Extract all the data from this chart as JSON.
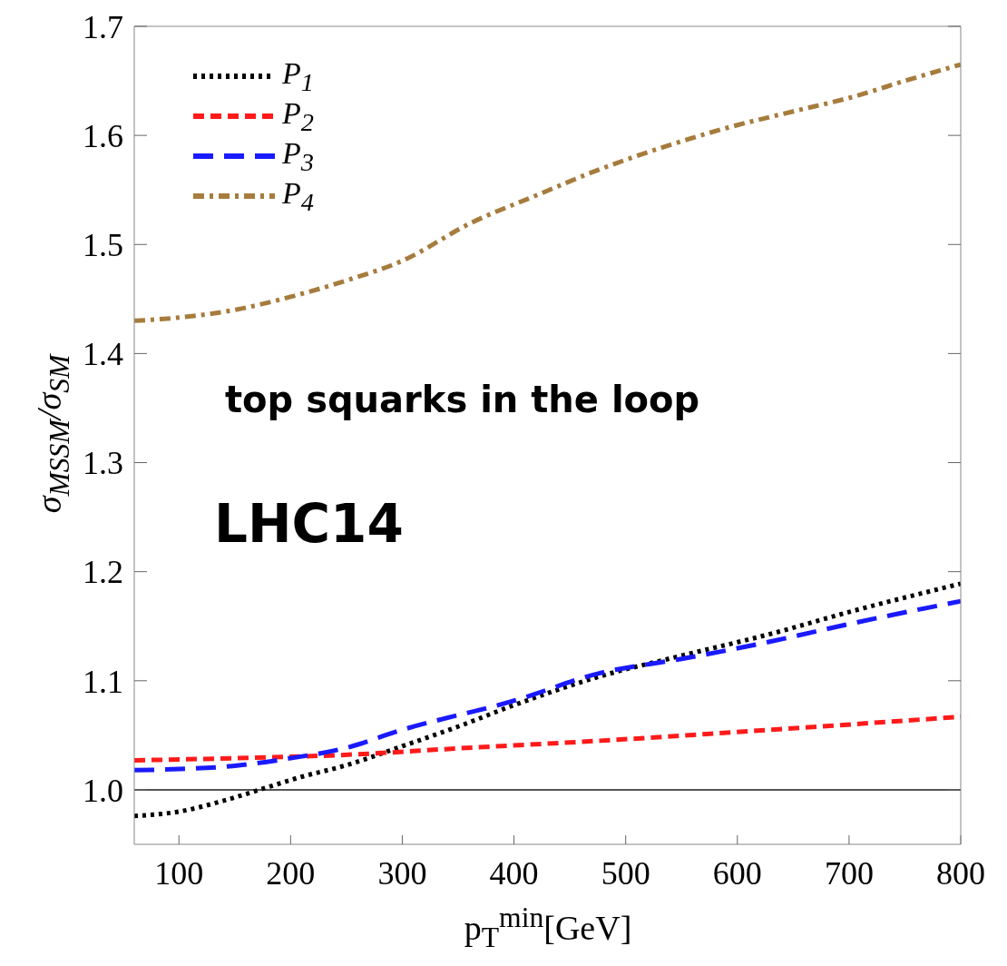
{
  "chart_data": {
    "type": "line",
    "xlabel": "p$_{T}$$^{min}$[GeV]",
    "ylabel": "σ$_{MSSM}$/σ$_{SM}$",
    "xlim": [
      60,
      800
    ],
    "xticks": [
      100,
      200,
      300,
      400,
      500,
      600,
      700,
      800
    ],
    "ylim": [
      0.95,
      1.7
    ],
    "yticks": [
      {
        "value": 1,
        "label": "1.0"
      },
      1.1,
      1.2,
      1.3,
      1.4,
      1.5,
      1.6,
      1.7
    ],
    "legend": "top left",
    "marker": "none",
    "ref_lines": [
      {
        "axis": "y",
        "value": 1.0,
        "color": "#555555",
        "line_style": "solid"
      }
    ],
    "annotations": [
      "top squarks in the loop",
      "LHC14"
    ],
    "series": [
      {
        "name": "P$_{1}$",
        "color": "#000000",
        "line_style": "dotted",
        "x": [
          60,
          100,
          140,
          172,
          210,
          248,
          300,
          350,
          401,
          477,
          550,
          630,
          700,
          800
        ],
        "values": [
          0.976,
          0.98,
          0.99,
          1.0,
          1.012,
          1.022,
          1.04,
          1.058,
          1.078,
          1.104,
          1.123,
          1.143,
          1.163,
          1.189
        ]
      },
      {
        "name": "P$_{2}$",
        "color": "#ff1a1a",
        "line_style": "dashed",
        "x": [
          60,
          150,
          248,
          350,
          477,
          630,
          800
        ],
        "values": [
          1.027,
          1.029,
          1.032,
          1.038,
          1.045,
          1.055,
          1.067
        ]
      },
      {
        "name": "P$_{3}$",
        "color": "#1a1aff",
        "line_style": "longdash",
        "x": [
          60,
          100,
          150,
          200,
          248,
          300,
          401,
          477,
          550,
          630,
          700,
          800
        ],
        "values": [
          1.018,
          1.019,
          1.022,
          1.029,
          1.038,
          1.055,
          1.082,
          1.107,
          1.12,
          1.136,
          1.152,
          1.173
        ]
      },
      {
        "name": "P$_{4}$",
        "color": "#a67c3d",
        "line_style": "dashdot",
        "x": [
          60,
          100,
          150,
          200,
          250,
          300,
          362,
          420,
          477,
          530,
          591,
          650,
          706,
          750,
          800
        ],
        "values": [
          1.43,
          1.433,
          1.44,
          1.452,
          1.467,
          1.485,
          1.52,
          1.545,
          1.569,
          1.588,
          1.607,
          1.622,
          1.636,
          1.65,
          1.665
        ]
      }
    ]
  }
}
